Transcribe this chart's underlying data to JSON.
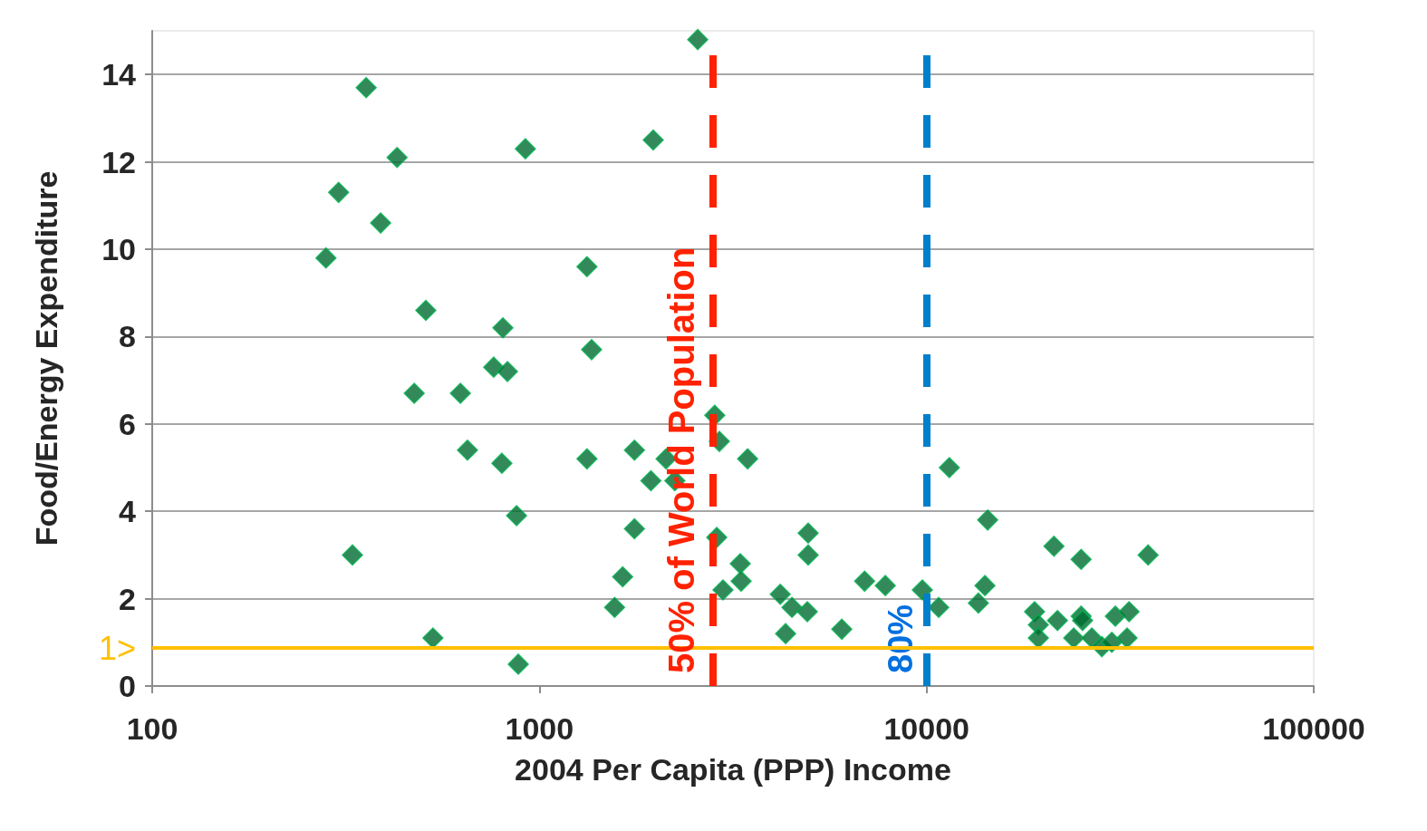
{
  "chart_data": {
    "type": "scatter",
    "xlabel": "2004 Per Capita (PPP) Income",
    "ylabel": "Food/Energy Expenditure",
    "log": "x",
    "grid": "y",
    "marker": "diamond",
    "annotations": [
      "80%"
    ],
    "xlim": [
      100,
      100000
    ],
    "xticks": [
      100,
      1000,
      10000,
      100000
    ],
    "ylim": [
      0,
      15
    ],
    "yticks": [
      0,
      2,
      4,
      6,
      8,
      10,
      12,
      14
    ],
    "series": [
      {
        "color": "#006b30",
        "x": [
          281,
          303,
          357,
          329,
          389,
          429,
          509,
          475,
          531,
          625,
          652,
          762,
          805,
          827,
          800,
          873,
          882,
          920,
          1327,
          1364,
          1327,
          1564,
          1641,
          1760,
          1760,
          1968,
          2124,
          1941,
          2238,
          2564,
          2838,
          2916,
          3450,
          2871,
          2980,
          3302,
          3319,
          4189,
          4491,
          4325,
          4920,
          4945,
          4945,
          6040,
          6918,
          7824,
          9752,
          10747,
          11450,
          13610,
          14380,
          14150,
          21330,
          25070,
          37340,
          19010,
          19440,
          19440,
          21780,
          25070,
          25290,
          23990,
          26720,
          28360,
          30090,
          30730,
          33340,
          32950
        ],
        "values": [
          9.8,
          11.3,
          13.7,
          3.0,
          10.6,
          12.1,
          8.6,
          6.7,
          1.1,
          6.7,
          5.4,
          7.3,
          8.2,
          7.2,
          5.1,
          3.9,
          0.5,
          12.3,
          9.6,
          7.7,
          5.2,
          1.8,
          2.5,
          3.6,
          5.4,
          12.5,
          5.2,
          4.7,
          4.7,
          14.8,
          6.2,
          5.6,
          5.2,
          3.4,
          2.2,
          2.8,
          2.4,
          2.1,
          1.8,
          1.2,
          1.7,
          3.5,
          3.0,
          1.3,
          2.4,
          2.3,
          2.2,
          1.8,
          5.0,
          1.9,
          3.8,
          2.3,
          3.2,
          2.9,
          3.0,
          1.7,
          1.4,
          1.1,
          1.5,
          1.6,
          1.5,
          1.1,
          1.1,
          0.9,
          1.0,
          1.6,
          1.7,
          1.1
        ]
      }
    ],
    "ref_lines": [
      {
        "axis": "x",
        "value": 2800,
        "label": "50% of World Population",
        "color": "#ff2200",
        "line_style": "dashed"
      },
      {
        "axis": "x",
        "value": 10000,
        "color": "#0080cc",
        "line_style": "dashed"
      },
      {
        "axis": "y",
        "value": 0.87,
        "label": "1>",
        "color": "#ffc000",
        "line_style": "solid"
      }
    ]
  }
}
